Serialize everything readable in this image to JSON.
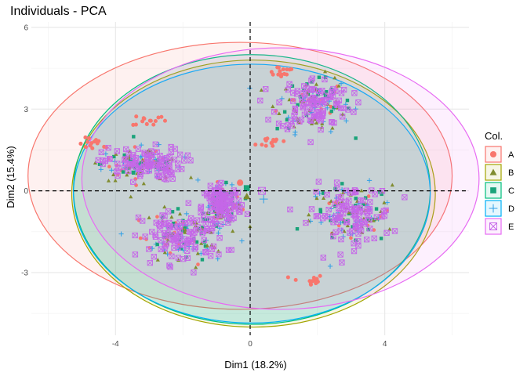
{
  "chart_data": {
    "type": "scatter",
    "title": "Individuals - PCA",
    "xlabel": "Dim1 (18.2%)",
    "ylabel": "Dim2 (15.4%)",
    "xlim": [
      -6.5,
      6.5
    ],
    "ylim": [
      -5.3,
      6.2
    ],
    "x_ticks": [
      -4,
      0,
      4
    ],
    "y_ticks": [
      -3,
      0,
      3,
      6
    ],
    "grid": true,
    "reference_lines": {
      "x": 0,
      "y": 0,
      "style": "dashed"
    },
    "legend": {
      "title": "Col.",
      "placement": "right"
    },
    "clusters": [
      {
        "name": "top-right",
        "center": [
          1.9,
          3.2
        ],
        "spread": [
          1.0,
          0.9
        ]
      },
      {
        "name": "left",
        "center": [
          -3.2,
          1.0
        ],
        "spread": [
          1.1,
          0.55
        ]
      },
      {
        "name": "bottom-left",
        "center": [
          -2.0,
          -1.7
        ],
        "spread": [
          1.15,
          0.9
        ]
      },
      {
        "name": "right",
        "center": [
          3.0,
          -0.9
        ],
        "spread": [
          1.1,
          1.0
        ]
      },
      {
        "name": "center-band",
        "center": [
          -0.8,
          -0.5
        ],
        "spread": [
          0.5,
          0.6
        ]
      }
    ],
    "series": [
      {
        "name": "A",
        "color": "#f8766d",
        "shape": "circle",
        "centroid": [
          -0.3,
          0.3
        ],
        "ellipse": {
          "center": [
            -0.3,
            0.55
          ],
          "radii": [
            6.3,
            4.9
          ]
        },
        "extra_clusters": [
          [
            -4.6,
            1.7
          ],
          [
            -3.0,
            2.6
          ],
          [
            1.7,
            -3.3
          ],
          [
            0.9,
            4.4
          ],
          [
            0.7,
            1.8
          ]
        ]
      },
      {
        "name": "B",
        "color": "#a3a500",
        "point_color": "#808c30",
        "shape": "triangle",
        "centroid": [
          -0.1,
          -0.2
        ],
        "ellipse": {
          "center": [
            0.1,
            -0.1
          ],
          "radii": [
            5.4,
            4.9
          ]
        }
      },
      {
        "name": "C",
        "color": "#00bf7d",
        "point_color": "#1aa37a",
        "shape": "square",
        "centroid": [
          -0.1,
          0.1
        ],
        "ellipse": {
          "center": [
            0.05,
            0.05
          ],
          "radii": [
            5.3,
            4.95
          ]
        }
      },
      {
        "name": "D",
        "color": "#00b0f6",
        "point_color": "#2f9fe6",
        "shape": "plus",
        "centroid": [
          0.4,
          -0.3
        ],
        "ellipse": {
          "center": [
            0.05,
            -0.1
          ],
          "radii": [
            5.3,
            4.75
          ]
        }
      },
      {
        "name": "E",
        "color": "#e76bf3",
        "point_color": "#c567e8",
        "shape": "square-x",
        "centroid": [
          0.35,
          0.0
        ],
        "ellipse": {
          "center": [
            0.9,
            0.45
          ],
          "radii": [
            5.9,
            4.8
          ]
        }
      }
    ]
  }
}
